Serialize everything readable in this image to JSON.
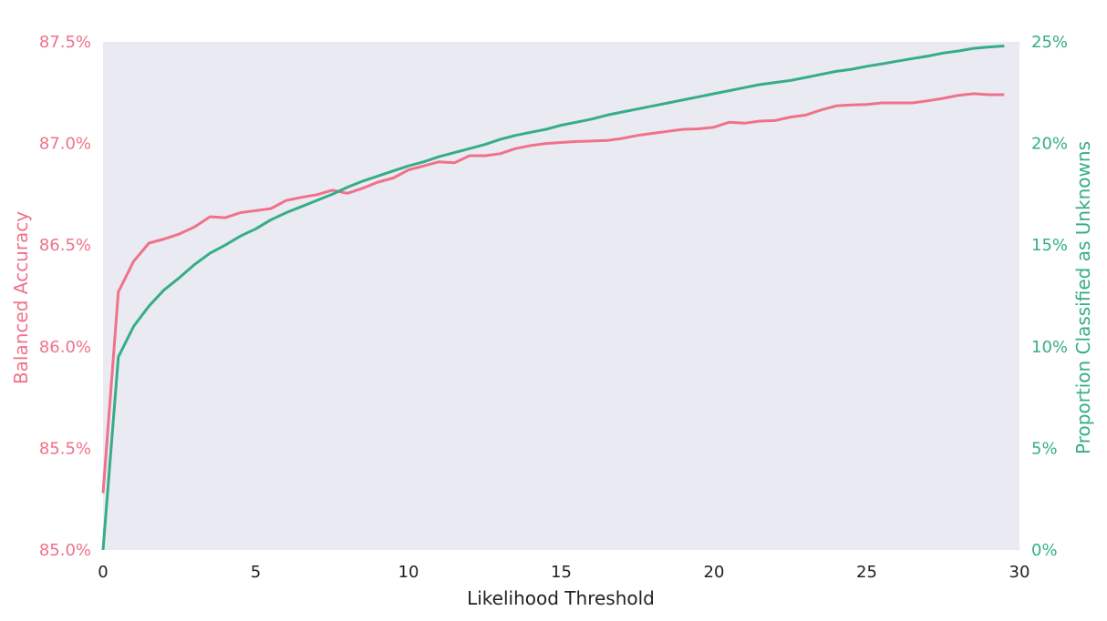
{
  "chart_data": {
    "type": "line",
    "xlabel": "Likelihood Threshold",
    "ylabel_left": "Balanced Accuracy",
    "ylabel_right": "Proportion Classified as Unknowns",
    "xlim": [
      0,
      30
    ],
    "ylim_left": [
      85.0,
      87.5
    ],
    "ylim_right": [
      0,
      25
    ],
    "x_ticks": [
      "0",
      "5",
      "10",
      "15",
      "20",
      "25",
      "30"
    ],
    "y_left_ticks": [
      "85.0%",
      "85.5%",
      "86.0%",
      "86.5%",
      "87.0%",
      "87.5%"
    ],
    "y_right_ticks": [
      "0%",
      "5%",
      "10%",
      "15%",
      "20%",
      "25%"
    ],
    "grid": false,
    "background": "#eaeaf2",
    "colors": {
      "accuracy": "#f07289",
      "unknowns": "#36ad86"
    },
    "x": [
      0,
      0.5,
      1,
      1.5,
      2,
      2.5,
      3,
      3.5,
      4,
      4.5,
      5,
      5.5,
      6,
      6.5,
      7,
      7.5,
      8,
      8.5,
      9,
      9.5,
      10,
      10.5,
      11,
      11.5,
      12,
      12.5,
      13,
      13.5,
      14,
      14.5,
      15,
      15.5,
      16,
      16.5,
      17,
      17.5,
      18,
      18.5,
      19,
      19.5,
      20,
      20.5,
      21,
      21.5,
      22,
      22.5,
      23,
      23.5,
      24,
      24.5,
      25,
      25.5,
      26,
      26.5,
      27,
      27.5,
      28,
      28.5,
      29,
      29.5
    ],
    "series": [
      {
        "axis": "left",
        "values": [
          85.28,
          86.27,
          86.42,
          86.51,
          86.53,
          86.555,
          86.59,
          86.64,
          86.635,
          86.66,
          86.67,
          86.68,
          86.72,
          86.735,
          86.748,
          86.77,
          86.755,
          86.78,
          86.81,
          86.83,
          86.87,
          86.89,
          86.91,
          86.905,
          86.94,
          86.94,
          86.95,
          86.975,
          86.99,
          87.0,
          87.005,
          87.01,
          87.012,
          87.015,
          87.025,
          87.04,
          87.05,
          87.06,
          87.07,
          87.072,
          87.08,
          87.105,
          87.1,
          87.11,
          87.113,
          87.13,
          87.14,
          87.165,
          87.185,
          87.19,
          87.192,
          87.2,
          87.2,
          87.2,
          87.21,
          87.222,
          87.237,
          87.245,
          87.24,
          87.24
        ]
      },
      {
        "axis": "right",
        "values": [
          0.0,
          9.5,
          11.0,
          12.0,
          12.8,
          13.4,
          14.05,
          14.6,
          15.0,
          15.45,
          15.8,
          16.25,
          16.6,
          16.9,
          17.2,
          17.5,
          17.85,
          18.15,
          18.4,
          18.65,
          18.9,
          19.1,
          19.35,
          19.55,
          19.75,
          19.95,
          20.2,
          20.4,
          20.55,
          20.7,
          20.9,
          21.05,
          21.2,
          21.4,
          21.55,
          21.7,
          21.85,
          22.0,
          22.15,
          22.3,
          22.45,
          22.6,
          22.75,
          22.9,
          23.0,
          23.1,
          23.25,
          23.4,
          23.55,
          23.65,
          23.8,
          23.92,
          24.05,
          24.18,
          24.3,
          24.45,
          24.55,
          24.68,
          24.75,
          24.8
        ]
      }
    ]
  }
}
